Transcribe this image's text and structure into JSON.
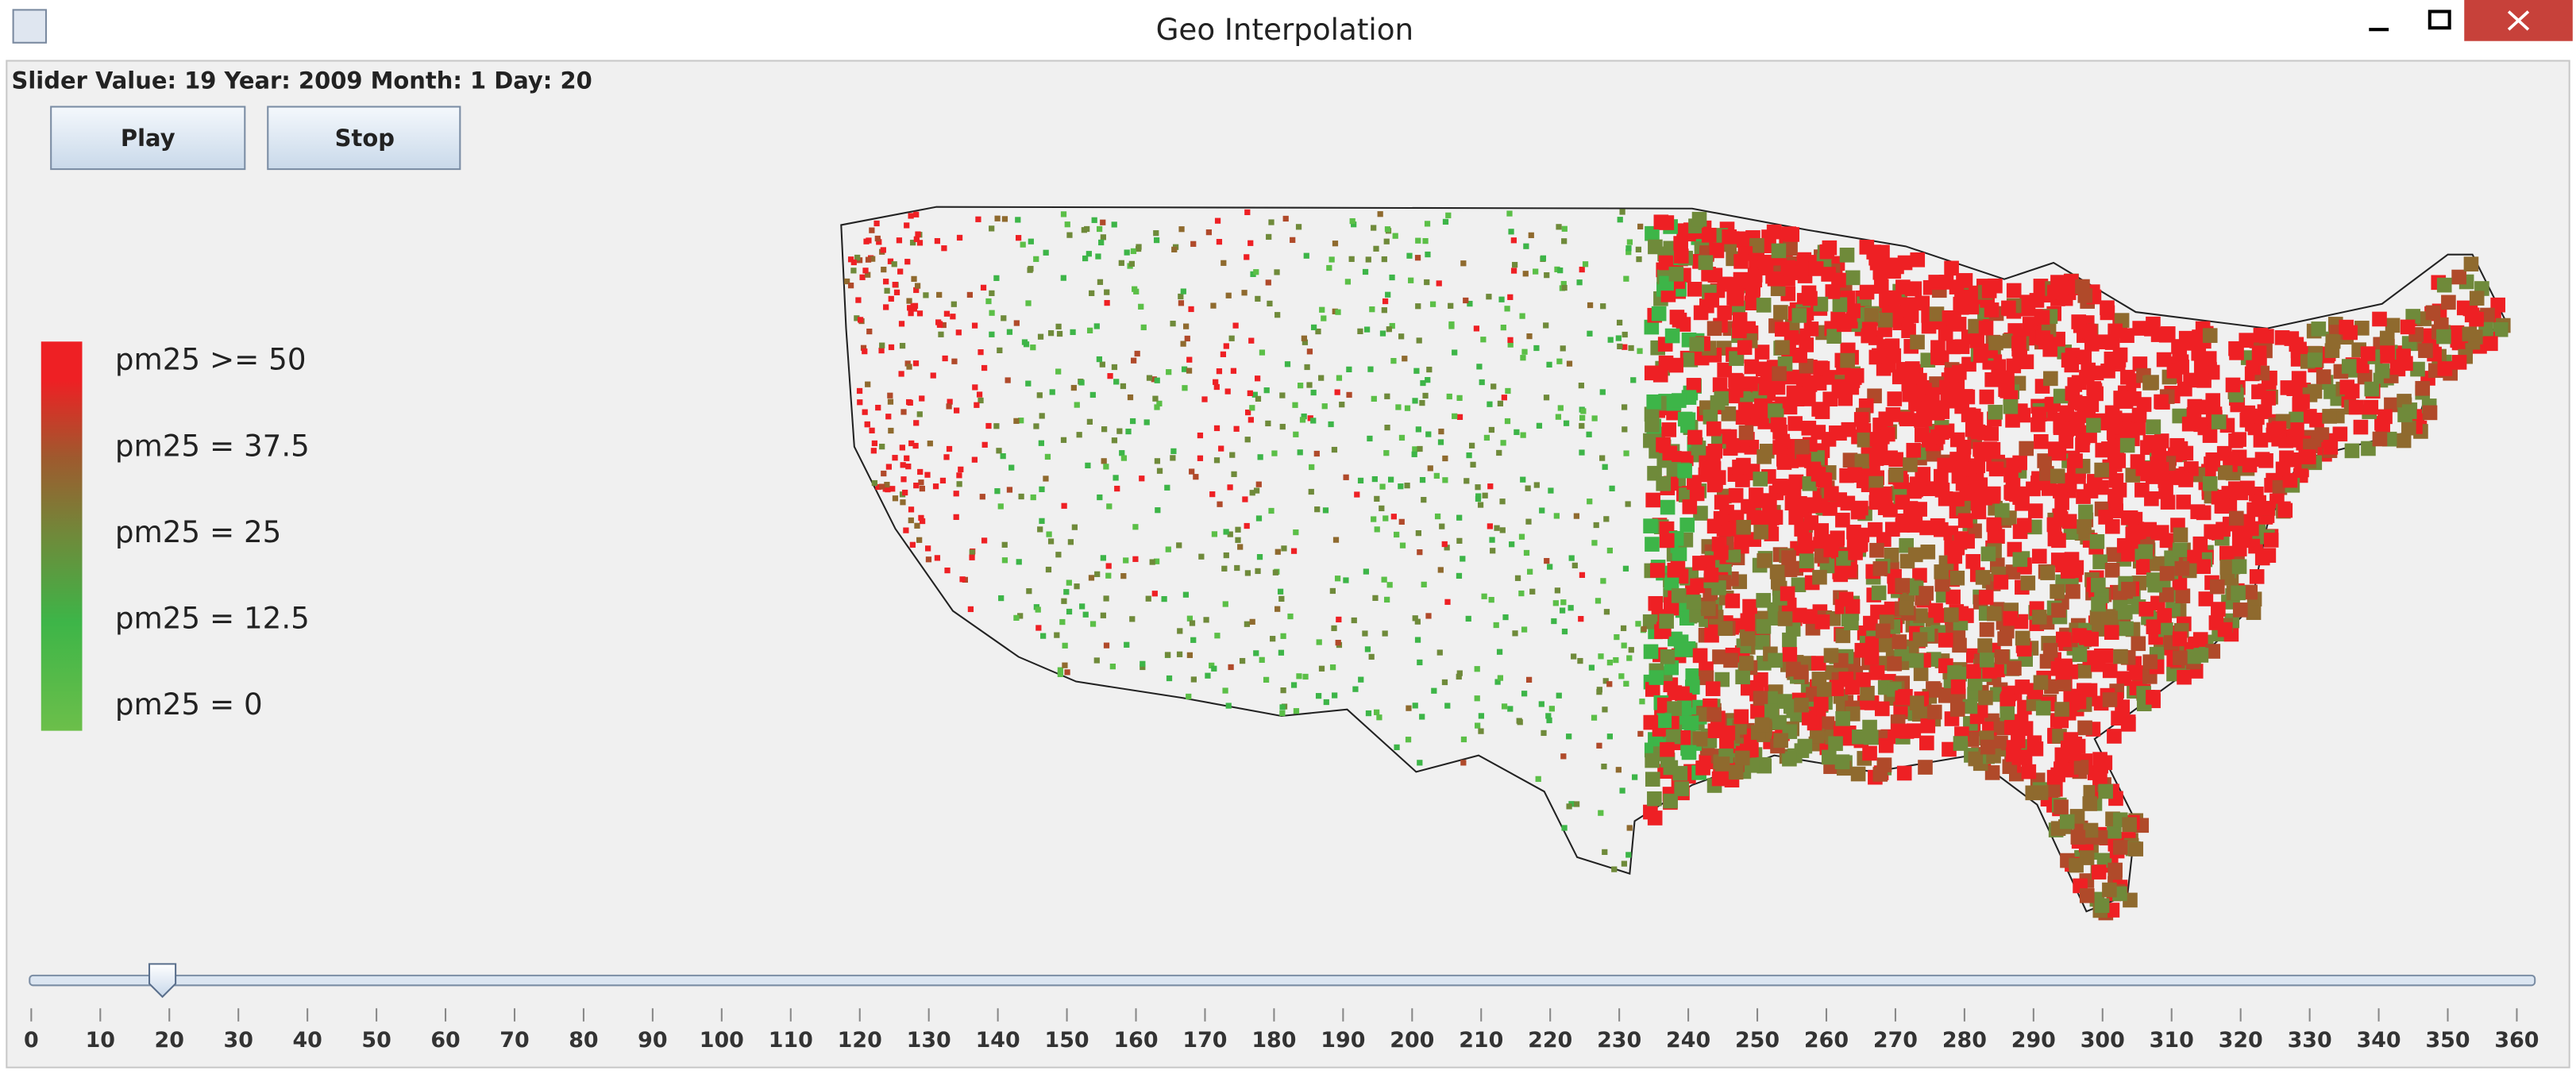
{
  "window": {
    "title": "Geo Interpolation"
  },
  "status": "Slider Value: 19 Year: 2009 Month: 1 Day: 20",
  "buttons": [
    "Play",
    "Stop"
  ],
  "legend": [
    "pm25 >= 50",
    "pm25 = 37.5",
    "pm25 = 25",
    "pm25 = 12.5",
    "pm25 = 0"
  ],
  "slider": {
    "value": 19,
    "ticks": [
      0,
      10,
      20,
      30,
      40,
      50,
      60,
      70,
      80,
      90,
      100,
      110,
      120,
      130,
      140,
      150,
      160,
      170,
      180,
      190,
      200,
      210,
      220,
      230,
      240,
      250,
      260,
      270,
      280,
      290,
      300,
      310,
      320,
      330,
      340,
      350,
      360
    ]
  }
}
